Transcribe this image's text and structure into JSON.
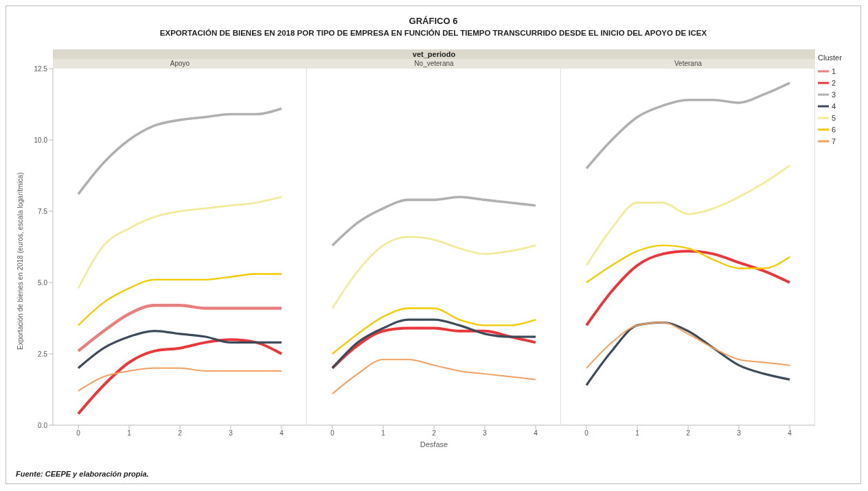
{
  "chart_data": [
    {
      "type": "line",
      "title": "Apoyo",
      "ylabel": "Exportación de bienes en 2018 (euros, escala logarítmica)",
      "annotations": [
        "GRÁFICO 6",
        "EXPORTACIÓN DE BIENES EN 2018 POR TIPO DE EMPRESA EN FUNCIÓN DEL TIEMPO TRANSCURRIDO DESDE EL INICIO DEL APOYO DE ICEX",
        "Fuente: CEEPE y elaboración propia."
      ],
      "x": [
        0,
        0.5,
        1,
        1.5,
        2,
        2.5,
        3,
        3.5,
        4
      ],
      "xlim": [
        -0.5,
        4.5
      ],
      "xticks": [
        0,
        1,
        2,
        3,
        4
      ],
      "ylim": [
        0,
        12.5
      ],
      "yticks": [
        {
          "value": 0,
          "label": "0.0"
        },
        2.5,
        {
          "value": 5,
          "label": "5.0"
        },
        7.5,
        {
          "value": 10,
          "label": "10.0"
        },
        12.5
      ],
      "grid": false,
      "legend": false,
      "series": [
        {
          "color": "#e88080",
          "values": [
            2.6,
            3.3,
            3.9,
            4.2,
            4.2,
            4.1,
            4.1,
            4.1,
            4.1
          ]
        },
        {
          "color": "#e8383c",
          "values": [
            0.4,
            1.4,
            2.2,
            2.6,
            2.7,
            2.9,
            3.0,
            2.9,
            2.5
          ]
        },
        {
          "color": "#b0b0b0",
          "values": [
            8.1,
            9.2,
            10.0,
            10.5,
            10.7,
            10.8,
            10.9,
            10.9,
            11.1
          ]
        },
        {
          "color": "#3c4a5a",
          "values": [
            2.0,
            2.7,
            3.1,
            3.3,
            3.2,
            3.1,
            2.9,
            2.9,
            2.9
          ]
        },
        {
          "color": "#f2eb9a",
          "values": [
            4.8,
            6.3,
            6.9,
            7.3,
            7.5,
            7.6,
            7.7,
            7.8,
            8.0
          ]
        },
        {
          "color": "#f2cc00",
          "values": [
            3.5,
            4.3,
            4.8,
            5.1,
            5.1,
            5.1,
            5.2,
            5.3,
            5.3
          ]
        },
        {
          "color": "#f2a060",
          "values": [
            1.2,
            1.7,
            1.9,
            2.0,
            2.0,
            1.9,
            1.9,
            1.9,
            1.9
          ]
        }
      ]
    },
    {
      "type": "line",
      "title": "No_veterana",
      "xlabel": "Desfase",
      "annotations": [
        "vet_periodo"
      ],
      "x": [
        0,
        0.5,
        1,
        1.5,
        2,
        2.5,
        3,
        3.5,
        4
      ],
      "xlim": [
        -0.5,
        4.5
      ],
      "xticks": [
        0,
        1,
        2,
        3,
        4
      ],
      "ylim": [
        0,
        12.5
      ],
      "yticks": [
        0,
        2.5,
        5,
        7.5,
        10,
        12.5
      ],
      "tick_labels": "x",
      "grid": false,
      "legend": false,
      "series": [
        {
          "color": "#e88080",
          "values": [
            null,
            null,
            null,
            null,
            null,
            null,
            null,
            null,
            null
          ]
        },
        {
          "color": "#e8383c",
          "values": [
            2.0,
            2.8,
            3.3,
            3.4,
            3.4,
            3.3,
            3.3,
            3.1,
            2.9
          ]
        },
        {
          "color": "#b0b0b0",
          "values": [
            6.3,
            7.1,
            7.6,
            7.9,
            7.9,
            8.0,
            7.9,
            7.8,
            7.7
          ]
        },
        {
          "color": "#3c4a5a",
          "values": [
            2.0,
            2.9,
            3.4,
            3.7,
            3.7,
            3.5,
            3.2,
            3.1,
            3.1
          ]
        },
        {
          "color": "#f2eb9a",
          "values": [
            4.1,
            5.4,
            6.3,
            6.6,
            6.5,
            6.2,
            6.0,
            6.1,
            6.3
          ]
        },
        {
          "color": "#f2cc00",
          "values": [
            2.5,
            3.2,
            3.8,
            4.1,
            4.1,
            3.7,
            3.5,
            3.5,
            3.7
          ]
        },
        {
          "color": "#f2a060",
          "values": [
            1.1,
            1.8,
            2.3,
            2.3,
            2.1,
            1.9,
            1.8,
            1.7,
            1.6
          ]
        }
      ]
    },
    {
      "type": "line",
      "title": "Veterana",
      "legend_title": "Cluster",
      "x": [
        0,
        0.5,
        1,
        1.5,
        2,
        2.5,
        3,
        3.5,
        4
      ],
      "xlim": [
        -0.5,
        4.5
      ],
      "xticks": [
        0,
        1,
        2,
        3,
        4
      ],
      "ylim": [
        0,
        12.5
      ],
      "yticks": [
        0,
        2.5,
        5,
        7.5,
        10,
        12.5
      ],
      "tick_labels": "x",
      "grid": false,
      "legend": "right",
      "series": [
        {
          "name": "1",
          "color": "#e88080",
          "values": [
            null,
            null,
            null,
            null,
            null,
            null,
            null,
            null,
            null
          ]
        },
        {
          "name": "2",
          "color": "#e8383c",
          "values": [
            3.5,
            4.7,
            5.6,
            6.0,
            6.1,
            6.0,
            5.7,
            5.4,
            5.0
          ]
        },
        {
          "name": "3",
          "color": "#b0b0b0",
          "values": [
            9.0,
            10.0,
            10.8,
            11.2,
            11.4,
            11.4,
            11.3,
            11.6,
            12.0
          ]
        },
        {
          "name": "4",
          "color": "#3c4a5a",
          "values": [
            1.4,
            2.6,
            3.5,
            3.6,
            3.3,
            2.7,
            2.1,
            1.8,
            1.6
          ]
        },
        {
          "name": "5",
          "color": "#f2eb9a",
          "values": [
            5.6,
            6.9,
            7.8,
            7.8,
            7.4,
            7.6,
            8.0,
            8.5,
            9.1
          ]
        },
        {
          "name": "6",
          "color": "#f2cc00",
          "values": [
            5.0,
            5.6,
            6.1,
            6.3,
            6.2,
            5.8,
            5.5,
            5.5,
            5.9
          ]
        },
        {
          "name": "7",
          "color": "#f2a060",
          "values": [
            2.0,
            2.9,
            3.5,
            3.6,
            3.2,
            2.7,
            2.3,
            2.2,
            2.1
          ]
        }
      ]
    }
  ]
}
